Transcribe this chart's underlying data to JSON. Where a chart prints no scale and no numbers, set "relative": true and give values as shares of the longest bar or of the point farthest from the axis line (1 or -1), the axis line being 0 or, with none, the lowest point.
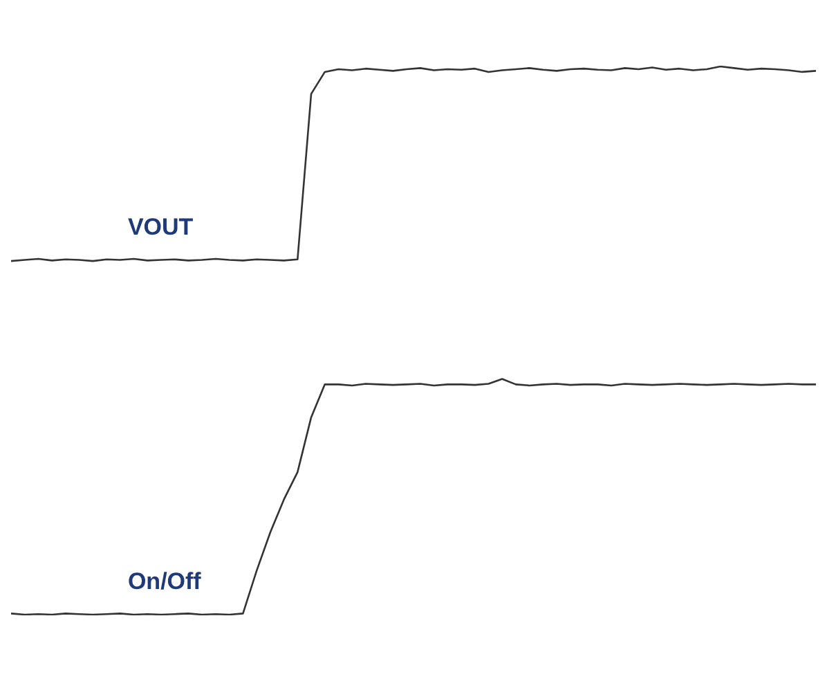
{
  "chart_data": {
    "type": "line",
    "relative": true,
    "legend": false,
    "marker": "none",
    "line_style": "solid",
    "categories": [
      null,
      null,
      null,
      null,
      null,
      null,
      null,
      null,
      null,
      null,
      null,
      null,
      null,
      null,
      null,
      null,
      null,
      null,
      null,
      null,
      null,
      null,
      null,
      null,
      null,
      null,
      null,
      null,
      null,
      null,
      null,
      null,
      null,
      null,
      null,
      null,
      null,
      null,
      null,
      null,
      null,
      null,
      null,
      null,
      null,
      null,
      null,
      null,
      null,
      null,
      null,
      null,
      null,
      null,
      null,
      null,
      null,
      null,
      null,
      null
    ],
    "series": [
      {
        "name": "VOUT",
        "color": "#333333",
        "values": [
          0.645,
          0.647,
          0.649,
          0.646,
          0.648,
          0.647,
          0.645,
          0.648,
          0.647,
          0.649,
          0.646,
          0.647,
          0.648,
          0.646,
          0.647,
          0.649,
          0.647,
          0.646,
          0.648,
          0.647,
          0.646,
          0.648,
          0.95,
          0.99,
          0.995,
          0.993,
          0.996,
          0.994,
          0.992,
          0.995,
          0.997,
          0.993,
          0.995,
          0.994,
          0.996,
          0.99,
          0.993,
          0.995,
          0.997,
          0.994,
          0.992,
          0.995,
          0.996,
          0.994,
          0.993,
          0.997,
          0.995,
          0.998,
          0.994,
          0.996,
          0.993,
          0.995,
          1,
          0.997,
          0.994,
          0.996,
          0.995,
          0.993,
          0.99,
          0.992
        ]
      },
      {
        "name": "On/Off",
        "color": "#333333",
        "values": [
          0.002,
          0,
          0.001,
          0,
          0.002,
          0.001,
          0,
          0.001,
          0.002,
          0,
          0.001,
          0,
          0.001,
          0.002,
          0,
          0.001,
          0,
          0.002,
          0.08,
          0.15,
          0.21,
          0.26,
          0.36,
          0.42,
          0.42,
          0.418,
          0.421,
          0.42,
          0.419,
          0.42,
          0.421,
          0.418,
          0.42,
          0.42,
          0.419,
          0.421,
          0.43,
          0.42,
          0.418,
          0.42,
          0.421,
          0.419,
          0.42,
          0.42,
          0.418,
          0.421,
          0.42,
          0.419,
          0.42,
          0.421,
          0.42,
          0.419,
          0.42,
          0.421,
          0.42,
          0.419,
          0.42,
          0.421,
          0.42,
          0.42
        ]
      }
    ]
  }
}
